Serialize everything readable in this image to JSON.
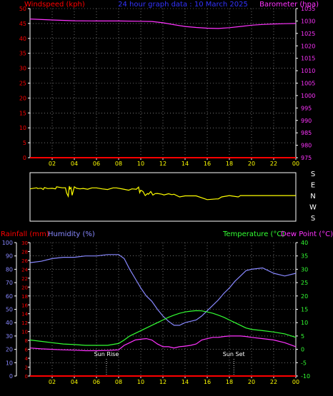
{
  "colors": {
    "background": "#000000",
    "axis": "#ffffff",
    "grid": "#ffffff",
    "wind": "#ff0000",
    "barometer": "#ff33ff",
    "title": "#3333ff",
    "direction": "#ffff00",
    "rainfall": "#ff0000",
    "humidity": "#8888ff",
    "temperature": "#33ff33",
    "dewpoint": "#ff33ff",
    "time_labels": "#ffff00",
    "sun_labels": "#ffffff"
  },
  "chart_data": [
    {
      "type": "line",
      "title": "24 hour graph data : 10 March 2025",
      "xlabel": "",
      "x_ticks": [
        "02",
        "04",
        "06",
        "08",
        "10",
        "12",
        "14",
        "16",
        "18",
        "20",
        "22",
        "00"
      ],
      "grid": true,
      "left_axis": {
        "label": "Windspeed (kph)",
        "range": [
          0,
          50
        ],
        "ticks": [
          "0",
          "5",
          "10",
          "15",
          "20",
          "25",
          "30",
          "35",
          "40",
          "45",
          "50"
        ]
      },
      "right_axis": {
        "label": "Barometer (hpa)",
        "range": [
          975,
          1035
        ],
        "ticks": [
          "975",
          "980",
          "985",
          "990",
          "995",
          "1000",
          "1005",
          "1010",
          "1015",
          "1020",
          "1025",
          "1030",
          "1035"
        ]
      },
      "series": [
        {
          "color_key": "barometer",
          "axis": "right",
          "x": [
            0,
            2,
            4,
            6,
            8,
            10,
            11,
            12,
            13,
            14,
            15,
            16,
            17,
            18,
            19,
            20,
            21,
            22,
            23,
            24
          ],
          "y": [
            1030.8,
            1030.4,
            1030.1,
            1030.0,
            1030.0,
            1029.9,
            1029.8,
            1029.3,
            1028.5,
            1027.8,
            1027.4,
            1027.1,
            1027.0,
            1027.3,
            1027.8,
            1028.3,
            1028.6,
            1028.8,
            1028.9,
            1029.0
          ]
        },
        {
          "color_key": "wind",
          "axis": "left",
          "x": [
            0,
            24
          ],
          "y": [
            0,
            0
          ]
        }
      ]
    },
    {
      "type": "line",
      "title": "",
      "y_categories": [
        "S",
        "E",
        "N",
        "W",
        "S"
      ],
      "series": [
        {
          "color_key": "direction",
          "x": [
            0,
            0.6,
            0.7,
            1.0,
            1.2,
            1.3,
            1.6,
            2.0,
            2.3,
            2.4,
            2.9,
            3.2,
            3.3,
            3.45,
            3.55,
            3.6,
            3.7,
            3.8,
            4.0,
            4.2,
            4.5,
            4.8,
            5.2,
            5.6,
            6.0,
            6.5,
            7.0,
            7.5,
            7.8,
            8.4,
            8.9,
            9.2,
            9.6,
            9.8,
            9.9,
            10.0,
            10.2,
            10.4,
            10.6,
            10.7,
            10.9,
            11.1,
            11.3,
            11.5,
            11.9,
            12.1,
            12.5,
            12.8,
            13.0,
            13.5,
            14.0,
            15.0,
            16.0,
            16.8,
            17.0,
            17.3,
            18.0,
            18.8,
            19.0,
            19.3,
            20.0,
            21.0,
            22.0,
            23.0,
            24.0
          ],
          "y": [
            120,
            112,
            118,
            115,
            125,
            110,
            118,
            116,
            120,
            105,
            112,
            112,
            150,
            175,
            100,
            120,
            110,
            168,
            105,
            116,
            120,
            117,
            123,
            113,
            113,
            120,
            125,
            113,
            113,
            122,
            130,
            120,
            123,
            107,
            148,
            130,
            140,
            170,
            155,
            160,
            140,
            166,
            155,
            154,
            160,
            165,
            156,
            163,
            160,
            180,
            172,
            172,
            200,
            195,
            195,
            180,
            170,
            180,
            170,
            170,
            170,
            170,
            170,
            170,
            170
          ]
        }
      ]
    },
    {
      "type": "line",
      "title": "",
      "x_ticks": [
        "02",
        "04",
        "06",
        "08",
        "10",
        "12",
        "14",
        "16",
        "18",
        "20",
        "22",
        "00"
      ],
      "grid": true,
      "left_axis_outer": {
        "label": "Rainfall (mm)",
        "range": [
          0,
          30
        ],
        "ticks": [
          "0",
          "2",
          "4",
          "6",
          "8",
          "10",
          "12",
          "14",
          "16",
          "18",
          "20",
          "22",
          "24",
          "26",
          "28",
          "30"
        ]
      },
      "left_axis_inner": {
        "label": "Humidity (%)",
        "range": [
          0,
          100
        ],
        "ticks": [
          "0",
          "10",
          "20",
          "30",
          "40",
          "50",
          "60",
          "70",
          "80",
          "90",
          "100"
        ]
      },
      "right_axis": {
        "label_temperature": "Temperature (°C)",
        "label_dewpoint": "Dew Point (°C)",
        "range": [
          -10,
          40
        ],
        "ticks": [
          "-10",
          "-5",
          "0",
          "5",
          "10",
          "15",
          "20",
          "25",
          "30",
          "35",
          "40"
        ]
      },
      "annotations": [
        {
          "text": "Sun Rise",
          "x": 6.9
        },
        {
          "text": "Sun Set",
          "x": 18.4
        }
      ],
      "series": [
        {
          "color_key": "humidity",
          "axis": "inner",
          "x": [
            0,
            1,
            2,
            3,
            4,
            5,
            6,
            7,
            8,
            8.5,
            9,
            9.5,
            10,
            10.5,
            11,
            11.5,
            12,
            12.5,
            13,
            13.5,
            14,
            14.5,
            15,
            15.5,
            16,
            16.5,
            17,
            17.5,
            18,
            18.5,
            19,
            19.5,
            20,
            21,
            22,
            23,
            24
          ],
          "y": [
            85,
            86,
            88,
            89,
            89,
            90,
            90,
            91,
            91,
            88,
            80,
            73,
            66,
            60,
            56,
            50,
            45,
            41,
            38,
            38,
            40,
            41,
            42,
            45,
            49,
            53,
            57,
            62,
            66,
            71,
            75,
            79,
            80,
            81,
            77,
            75,
            77
          ]
        },
        {
          "color_key": "temperature",
          "axis": "right",
          "x": [
            0,
            1,
            2,
            3,
            4,
            5,
            6,
            7,
            8,
            8.5,
            9,
            9.5,
            10,
            10.5,
            11,
            11.5,
            12,
            12.5,
            13,
            13.5,
            14,
            14.5,
            15,
            15.5,
            16,
            16.5,
            17,
            17.5,
            18,
            18.5,
            19,
            19.5,
            20,
            21,
            22,
            23,
            24
          ],
          "y": [
            3.5,
            3.0,
            2.5,
            2.0,
            1.8,
            1.5,
            1.5,
            1.5,
            2.2,
            3.5,
            5.0,
            6.0,
            7.0,
            8.0,
            9.0,
            10.0,
            11.0,
            12.0,
            12.8,
            13.5,
            14.0,
            14.3,
            14.5,
            14.4,
            14.0,
            13.5,
            12.8,
            12.0,
            11.0,
            10.0,
            9.0,
            8.0,
            7.5,
            7.0,
            6.5,
            5.8,
            4.5
          ]
        },
        {
          "color_key": "dewpoint",
          "axis": "right",
          "x": [
            0,
            1,
            2,
            3,
            4,
            5,
            6,
            7,
            8,
            8.5,
            9,
            9.5,
            10,
            10.5,
            11,
            11.5,
            12,
            12.5,
            13,
            13.5,
            14,
            14.5,
            15,
            15.5,
            16,
            16.5,
            17,
            17.5,
            18,
            18.5,
            19,
            19.5,
            20,
            21,
            22,
            23,
            24
          ],
          "y": [
            0.5,
            0.2,
            0,
            -0.2,
            -0.3,
            -0.5,
            -0.5,
            -0.4,
            -0.2,
            1.5,
            2.5,
            3.5,
            3.8,
            4.0,
            3.5,
            2.0,
            1.0,
            1.0,
            0.5,
            1.0,
            1.2,
            1.5,
            2.0,
            3.5,
            4.0,
            4.5,
            4.5,
            4.8,
            5.0,
            5.0,
            5.0,
            4.8,
            4.5,
            4.0,
            3.5,
            2.5,
            1.0
          ]
        },
        {
          "color_key": "rainfall",
          "axis": "outer",
          "x": [
            0,
            24
          ],
          "y": [
            0,
            0
          ]
        }
      ]
    }
  ]
}
